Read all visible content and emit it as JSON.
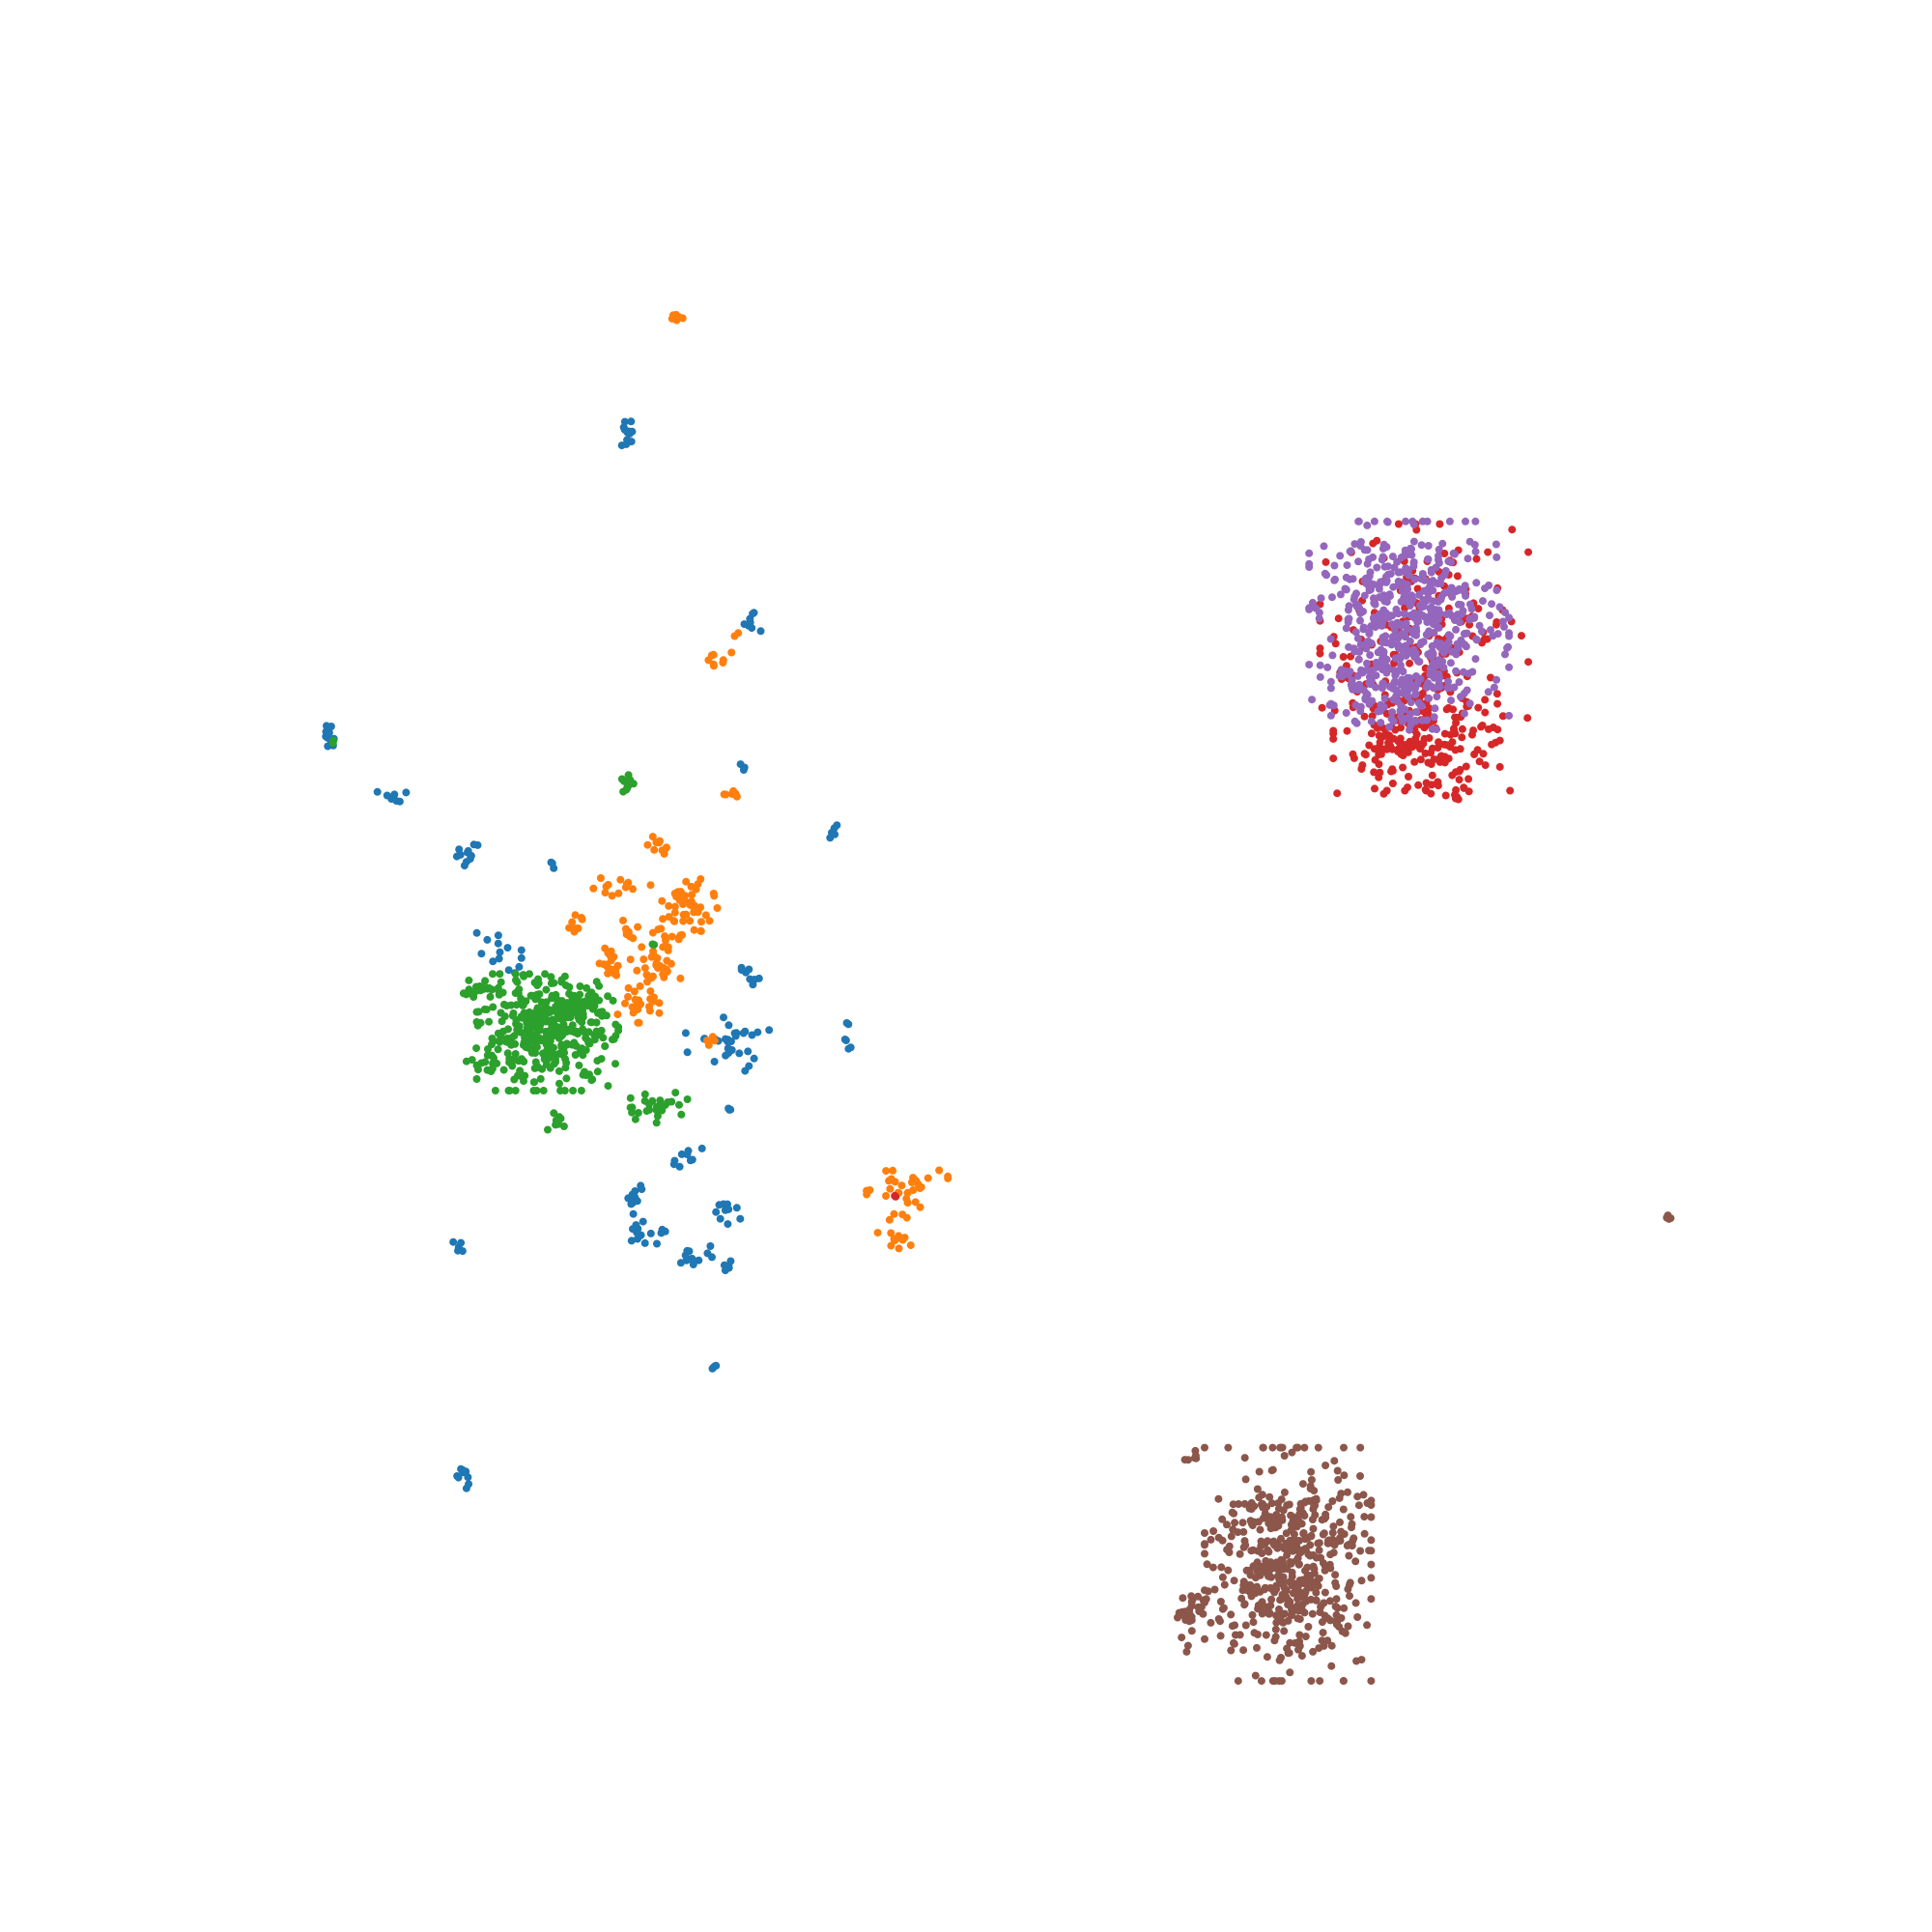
{
  "chart_data": {
    "type": "scatter",
    "title": "",
    "xlabel": "",
    "ylabel": "",
    "axes_visible": false,
    "grid": false,
    "legend": "none",
    "xlim": [
      0,
      100
    ],
    "ylim": [
      0,
      100
    ],
    "point_radius": 4,
    "series": [
      {
        "color": "#1f77b4",
        "clusters": [
          {
            "cx": 32.2,
            "cy": 78.1,
            "sx": 0.3,
            "sy": 0.4,
            "n": 12
          },
          {
            "cx": 38.5,
            "cy": 68.0,
            "sx": 0.3,
            "sy": 0.3,
            "n": 8
          },
          {
            "cx": 38.2,
            "cy": 60.5,
            "sx": 0.1,
            "sy": 0.1,
            "n": 3
          },
          {
            "cx": 16.3,
            "cy": 62.1,
            "sx": 0.3,
            "sy": 0.4,
            "n": 10
          },
          {
            "cx": 20.0,
            "cy": 58.9,
            "sx": 0.6,
            "sy": 0.2,
            "n": 8
          },
          {
            "cx": 23.6,
            "cy": 55.8,
            "sx": 0.3,
            "sy": 0.3,
            "n": 12
          },
          {
            "cx": 28.2,
            "cy": 55.3,
            "sx": 0.1,
            "sy": 0.1,
            "n": 3
          },
          {
            "cx": 43.1,
            "cy": 57.1,
            "sx": 0.2,
            "sy": 0.2,
            "n": 5
          },
          {
            "cx": 25.2,
            "cy": 50.9,
            "sx": 0.6,
            "sy": 0.6,
            "n": 14
          },
          {
            "cx": 38.7,
            "cy": 49.4,
            "sx": 0.3,
            "sy": 0.4,
            "n": 8
          },
          {
            "cx": 37.4,
            "cy": 45.8,
            "sx": 1.0,
            "sy": 0.7,
            "n": 30
          },
          {
            "cx": 43.8,
            "cy": 46.2,
            "sx": 0.1,
            "sy": 0.4,
            "n": 6
          },
          {
            "cx": 37.5,
            "cy": 42.4,
            "sx": 0.1,
            "sy": 0.1,
            "n": 3
          },
          {
            "cx": 35.5,
            "cy": 40.2,
            "sx": 0.3,
            "sy": 0.3,
            "n": 6
          },
          {
            "cx": 34.8,
            "cy": 39.4,
            "sx": 0.2,
            "sy": 0.2,
            "n": 3
          },
          {
            "cx": 32.6,
            "cy": 37.8,
            "sx": 0.2,
            "sy": 0.5,
            "n": 10
          },
          {
            "cx": 37.5,
            "cy": 37.2,
            "sx": 0.4,
            "sy": 0.4,
            "n": 10
          },
          {
            "cx": 32.8,
            "cy": 35.8,
            "sx": 0.6,
            "sy": 0.4,
            "n": 12
          },
          {
            "cx": 34.0,
            "cy": 36.1,
            "sx": 0.1,
            "sy": 0.1,
            "n": 3
          },
          {
            "cx": 35.8,
            "cy": 34.6,
            "sx": 0.5,
            "sy": 0.3,
            "n": 12
          },
          {
            "cx": 37.4,
            "cy": 34.2,
            "sx": 0.2,
            "sy": 0.2,
            "n": 5
          },
          {
            "cx": 23.2,
            "cy": 35.2,
            "sx": 0.2,
            "sy": 0.2,
            "n": 5
          },
          {
            "cx": 36.7,
            "cy": 28.9,
            "sx": 0.1,
            "sy": 0.1,
            "n": 4
          },
          {
            "cx": 23.6,
            "cy": 23.2,
            "sx": 0.3,
            "sy": 0.4,
            "n": 10
          }
        ]
      },
      {
        "color": "#ff7f0e",
        "clusters": [
          {
            "cx": 34.7,
            "cy": 84.3,
            "sx": 0.2,
            "sy": 0.2,
            "n": 6
          },
          {
            "cx": 37.0,
            "cy": 66.2,
            "sx": 0.3,
            "sy": 0.3,
            "n": 8
          },
          {
            "cx": 37.9,
            "cy": 67.4,
            "sx": 0.1,
            "sy": 0.1,
            "n": 2
          },
          {
            "cx": 37.3,
            "cy": 59.0,
            "sx": 0.3,
            "sy": 0.2,
            "n": 6
          },
          {
            "cx": 33.6,
            "cy": 56.5,
            "sx": 0.3,
            "sy": 0.3,
            "n": 10
          },
          {
            "cx": 31.3,
            "cy": 54.2,
            "sx": 0.5,
            "sy": 0.3,
            "n": 12
          },
          {
            "cx": 35.1,
            "cy": 52.8,
            "sx": 0.8,
            "sy": 0.9,
            "n": 60
          },
          {
            "cx": 29.4,
            "cy": 52.1,
            "sx": 0.3,
            "sy": 0.3,
            "n": 8
          },
          {
            "cx": 32.0,
            "cy": 52.0,
            "sx": 0.3,
            "sy": 0.3,
            "n": 8
          },
          {
            "cx": 33.6,
            "cy": 49.9,
            "sx": 0.6,
            "sy": 0.5,
            "n": 30
          },
          {
            "cx": 31.3,
            "cy": 50.1,
            "sx": 0.3,
            "sy": 0.5,
            "n": 20
          },
          {
            "cx": 32.7,
            "cy": 48.1,
            "sx": 0.5,
            "sy": 0.5,
            "n": 25
          },
          {
            "cx": 36.5,
            "cy": 46.2,
            "sx": 0.3,
            "sy": 0.2,
            "n": 5
          },
          {
            "cx": 46.4,
            "cy": 38.2,
            "sx": 1.2,
            "sy": 0.6,
            "n": 32
          },
          {
            "cx": 46.4,
            "cy": 35.8,
            "sx": 0.5,
            "sy": 0.5,
            "n": 14
          }
        ]
      },
      {
        "color": "#2ca02c",
        "clusters": [
          {
            "cx": 16.6,
            "cy": 61.8,
            "sx": 0.1,
            "sy": 0.1,
            "n": 2
          },
          {
            "cx": 32.0,
            "cy": 59.5,
            "sx": 0.2,
            "sy": 0.4,
            "n": 12
          },
          {
            "cx": 24.3,
            "cy": 48.8,
            "sx": 0.6,
            "sy": 0.2,
            "n": 25
          },
          {
            "cx": 27.9,
            "cy": 46.5,
            "sx": 1.7,
            "sy": 1.4,
            "n": 380
          },
          {
            "cx": 29.3,
            "cy": 48.1,
            "sx": 0.7,
            "sy": 0.3,
            "n": 40
          },
          {
            "cx": 24.7,
            "cy": 45.0,
            "sx": 0.5,
            "sy": 0.3,
            "n": 14
          },
          {
            "cx": 33.6,
            "cy": 42.6,
            "sx": 0.8,
            "sy": 0.4,
            "n": 28
          },
          {
            "cx": 28.4,
            "cy": 41.8,
            "sx": 0.3,
            "sy": 0.3,
            "n": 8
          },
          {
            "cx": 33.5,
            "cy": 51.2,
            "sx": 0.1,
            "sy": 0.1,
            "n": 2
          }
        ]
      },
      {
        "color": "#d62728",
        "clusters": [
          {
            "cx": 74.2,
            "cy": 66.3,
            "sx": 2.5,
            "sy": 3.2,
            "n": 220
          },
          {
            "cx": 73.8,
            "cy": 61.5,
            "sx": 2.0,
            "sy": 1.2,
            "n": 160
          },
          {
            "cx": 76.1,
            "cy": 59.2,
            "sx": 0.3,
            "sy": 0.4,
            "n": 8
          },
          {
            "cx": 46.2,
            "cy": 37.9,
            "sx": 0.1,
            "sy": 0.1,
            "n": 2
          }
        ]
      },
      {
        "color": "#9467bd",
        "clusters": [
          {
            "cx": 73.4,
            "cy": 68.2,
            "sx": 2.4,
            "sy": 2.4,
            "n": 520
          },
          {
            "cx": 72.8,
            "cy": 64.5,
            "sx": 1.6,
            "sy": 1.0,
            "n": 80
          }
        ]
      },
      {
        "color": "#8c564b",
        "clusters": [
          {
            "cx": 67.0,
            "cy": 18.4,
            "sx": 2.0,
            "sy": 2.8,
            "n": 520
          },
          {
            "cx": 62.0,
            "cy": 15.5,
            "sx": 0.7,
            "sy": 0.9,
            "n": 30
          },
          {
            "cx": 62.0,
            "cy": 24.0,
            "sx": 0.2,
            "sy": 0.2,
            "n": 6
          },
          {
            "cx": 87.0,
            "cy": 36.7,
            "sx": 0.1,
            "sy": 0.1,
            "n": 4
          }
        ]
      }
    ]
  }
}
